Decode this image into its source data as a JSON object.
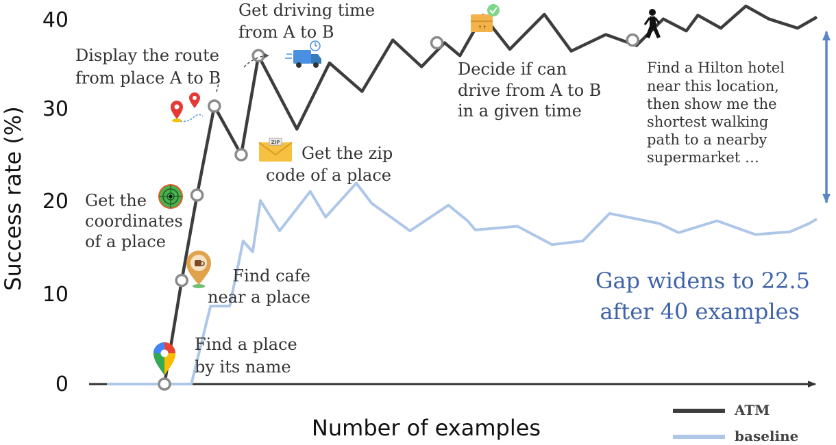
{
  "chart_data": {
    "type": "line",
    "xlabel": "Number of examples",
    "ylabel": "Success rate (%)",
    "ylim": [
      0,
      40
    ],
    "yticks": [
      "0",
      "10",
      "20",
      "30",
      "40"
    ],
    "grid": false,
    "legend_position": "bottom-right",
    "series": [
      {
        "name": "ATM",
        "color": "#3d3d3d",
        "x": [
          0.0,
          0.9,
          1.7,
          2.6,
          4.0,
          4.9,
          6.9,
          8.6,
          10.3,
          11.9,
          13.4,
          14.6,
          15.4,
          16.6,
          18.0,
          19.8,
          21.2,
          23.0,
          24.6,
          26.0,
          27.2,
          27.8,
          29.0,
          30.3,
          31.5,
          33.0,
          34.0
        ],
        "y": [
          0,
          11.3,
          20.6,
          30.3,
          25.0,
          35.8,
          27.8,
          35.0,
          31.9,
          37.5,
          34.6,
          37.2,
          35.8,
          40.2,
          36.5,
          40.3,
          36.3,
          38.1,
          36.9,
          39.8,
          38.5,
          40.2,
          38.8,
          41.2,
          39.8,
          38.8,
          40.0
        ],
        "markers": [
          {
            "x": 0.0,
            "y": 0
          },
          {
            "x": 0.9,
            "y": 11.3
          },
          {
            "x": 1.7,
            "y": 20.6
          },
          {
            "x": 2.6,
            "y": 30.3
          },
          {
            "x": 4.0,
            "y": 25.0
          },
          {
            "x": 4.9,
            "y": 35.8
          },
          {
            "x": 14.2,
            "y": 37.2
          },
          {
            "x": 24.4,
            "y": 37.5
          }
        ]
      },
      {
        "name": "baseline",
        "color": "#aec7e8",
        "x": [
          -3.0,
          1.4,
          2.4,
          3.4,
          4.1,
          4.6,
          5.0,
          6.0,
          7.6,
          8.4,
          10.0,
          10.8,
          12.8,
          14.8,
          15.8,
          16.2,
          18.4,
          20.2,
          21.8,
          23.2,
          25.8,
          26.8,
          28.8,
          30.8,
          32.6,
          33.6,
          34.0
        ],
        "y": [
          0,
          0,
          8.5,
          8.5,
          15.6,
          14.4,
          20.0,
          16.7,
          21.0,
          18.2,
          21.9,
          19.7,
          16.7,
          19.5,
          17.8,
          16.8,
          17.2,
          15.2,
          15.6,
          18.6,
          17.5,
          16.5,
          17.8,
          16.3,
          16.6,
          17.5,
          18.0
        ]
      }
    ],
    "annotations": [
      {
        "name": "find-place",
        "lines": [
          "Find a place",
          "by its name"
        ],
        "icon": "google-maps-pin-icon"
      },
      {
        "name": "find-cafe",
        "lines": [
          "Find cafe",
          "near a place"
        ],
        "icon": "cafe-pin-icon"
      },
      {
        "name": "coordinates",
        "lines": [
          "Get the",
          "coordinates",
          "of a place"
        ],
        "icon": "radar-target-icon"
      },
      {
        "name": "display-route",
        "lines": [
          "Display the route",
          "from place A to B"
        ],
        "icon": "route-pins-icon"
      },
      {
        "name": "zip-code",
        "lines": [
          "Get the zip",
          "code of a place"
        ],
        "icon": "zip-envelope-icon"
      },
      {
        "name": "driving-time",
        "lines": [
          "Get driving time",
          "from A to B"
        ],
        "icon": "delivery-truck-icon"
      },
      {
        "name": "decide-drive",
        "lines": [
          "Decide if can",
          "drive from A to B",
          "in a given time"
        ],
        "icon": "package-check-icon"
      },
      {
        "name": "hilton",
        "lines": [
          "Find a Hilton hotel",
          "near this location,",
          "then show me the",
          "shortest walking",
          "path to a nearby",
          "supermarket …"
        ],
        "icon": "walking-person-icon"
      }
    ],
    "gap_note": [
      "Gap widens to 22.5",
      "after 40 examples"
    ],
    "gap_color": "#5b85c9"
  }
}
